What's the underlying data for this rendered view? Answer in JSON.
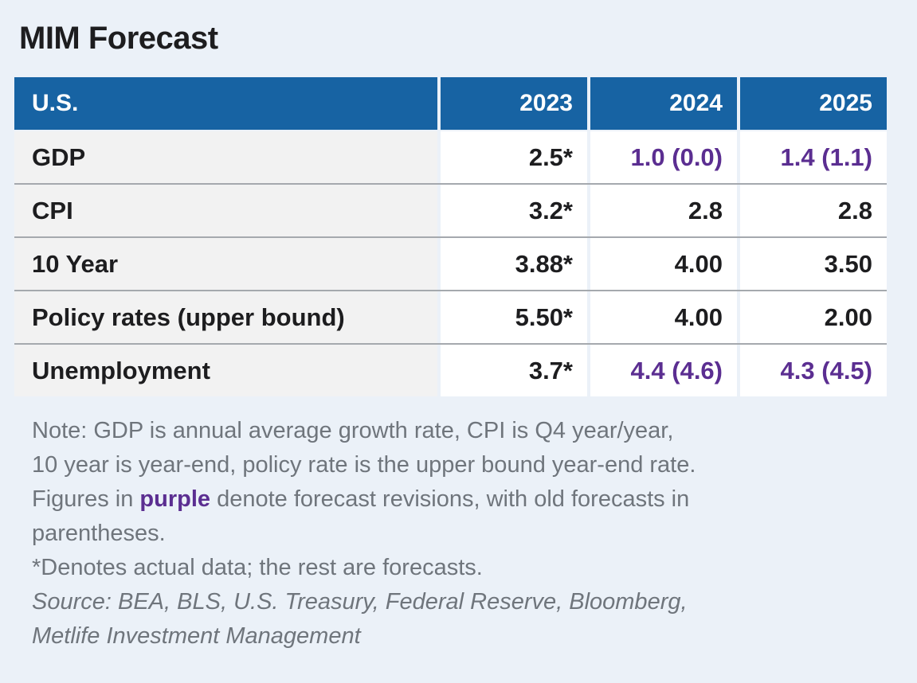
{
  "title": "MIM Forecast",
  "colors": {
    "page-bg": "#ebf1f8",
    "header-blue": "#1763a3",
    "purple": "#5b2e91",
    "label-bg": "#f2f2f2",
    "cell-bg": "#ffffff",
    "separator": "#a5a9ae",
    "text-black": "#1d1d1f",
    "note-gray": "#6f757c"
  },
  "table": {
    "header": {
      "label": "U.S.",
      "years": [
        "2023",
        "2024",
        "2025"
      ]
    },
    "rows": [
      {
        "label": "GDP",
        "values": [
          {
            "text": "2.5*",
            "revised": false
          },
          {
            "text": "1.0 (0.0)",
            "revised": true
          },
          {
            "text": "1.4 (1.1)",
            "revised": true
          }
        ]
      },
      {
        "label": "CPI",
        "values": [
          {
            "text": "3.2*",
            "revised": false
          },
          {
            "text": "2.8",
            "revised": false
          },
          {
            "text": "2.8",
            "revised": false
          }
        ]
      },
      {
        "label": "10 Year",
        "values": [
          {
            "text": "3.88*",
            "revised": false
          },
          {
            "text": "4.00",
            "revised": false
          },
          {
            "text": "3.50",
            "revised": false
          }
        ]
      },
      {
        "label": "Policy rates (upper bound)",
        "values": [
          {
            "text": "5.50*",
            "revised": false
          },
          {
            "text": "4.00",
            "revised": false
          },
          {
            "text": "2.00",
            "revised": false
          }
        ]
      },
      {
        "label": "Unemployment",
        "values": [
          {
            "text": "3.7*",
            "revised": false
          },
          {
            "text": "4.4 (4.6)",
            "revised": true
          },
          {
            "text": "4.3 (4.5)",
            "revised": true
          }
        ]
      }
    ]
  },
  "notes": {
    "lines": [
      {
        "text": "Note: GDP is annual average growth rate, CPI is Q4 year/year,"
      },
      {
        "text": "10 year is year-end, policy rate is the upper bound year-end rate."
      },
      {
        "prefix": "Figures in ",
        "highlight": "purple",
        "suffix": " denote forecast revisions, with old forecasts in"
      },
      {
        "text": "parentheses."
      },
      {
        "text": "*Denotes actual data; the rest are forecasts."
      },
      {
        "text": "Source: BEA, BLS, U.S. Treasury, Federal Reserve, Bloomberg,",
        "italic": true
      },
      {
        "text": "Metlife Investment Management",
        "italic": true
      }
    ]
  },
  "chart_data": {
    "type": "table",
    "title": "MIM Forecast",
    "columns": [
      "U.S.",
      "2023",
      "2024",
      "2025"
    ],
    "rows": [
      [
        "GDP",
        "2.5*",
        "1.0 (0.0)",
        "1.4 (1.1)"
      ],
      [
        "CPI",
        "3.2*",
        "2.8",
        "2.8"
      ],
      [
        "10 Year",
        "3.88*",
        "4.00",
        "3.50"
      ],
      [
        "Policy rates (upper bound)",
        "5.50*",
        "4.00",
        "2.00"
      ],
      [
        "Unemployment",
        "3.7*",
        "4.4 (4.6)",
        "4.3 (4.5)"
      ]
    ],
    "revised_cells_purple": [
      [
        "GDP",
        "2024"
      ],
      [
        "GDP",
        "2025"
      ],
      [
        "Unemployment",
        "2024"
      ],
      [
        "Unemployment",
        "2025"
      ]
    ],
    "notes": [
      "Note: GDP is annual average growth rate, CPI is Q4 year/year, 10 year is year-end, policy rate is the upper bound year-end rate. Figures in purple denote forecast revisions, with old forecasts in parentheses.",
      "*Denotes actual data; the rest are forecasts.",
      "Source: BEA, BLS, U.S. Treasury, Federal Reserve, Bloomberg, Metlife Investment Management"
    ]
  }
}
